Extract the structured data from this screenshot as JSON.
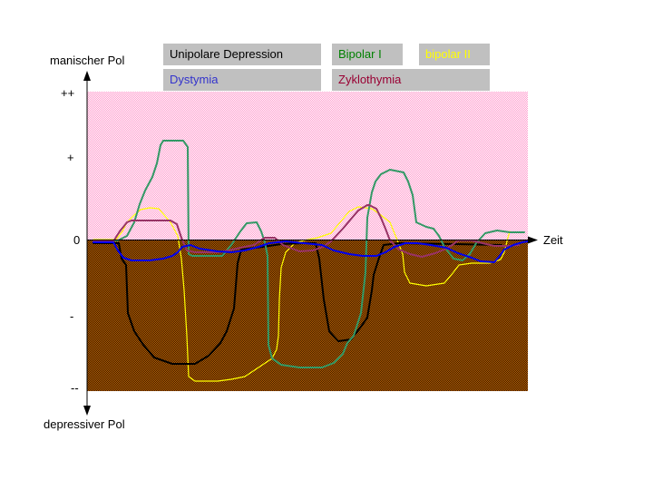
{
  "axis": {
    "y_top_label": "manischer Pol",
    "y_bottom_label": "depressiver Pol",
    "x_label": "Zeit",
    "ticks": [
      "++",
      "+",
      "0",
      "-",
      "--"
    ]
  },
  "legend": [
    {
      "label": "Unipolare Depression",
      "color": "#000000"
    },
    {
      "label": "Bipolar I",
      "color": "#008000"
    },
    {
      "label": "bipolar II",
      "color": "#ffff00"
    },
    {
      "label": "Dystymia",
      "color": "#3333cc"
    },
    {
      "label": "Zyklothymia",
      "color": "#990033"
    }
  ],
  "colors": {
    "manic_zone": "#ff99cc",
    "depressive_zone": "#8b4a10",
    "legend_bg": "#c0c0c0"
  }
}
